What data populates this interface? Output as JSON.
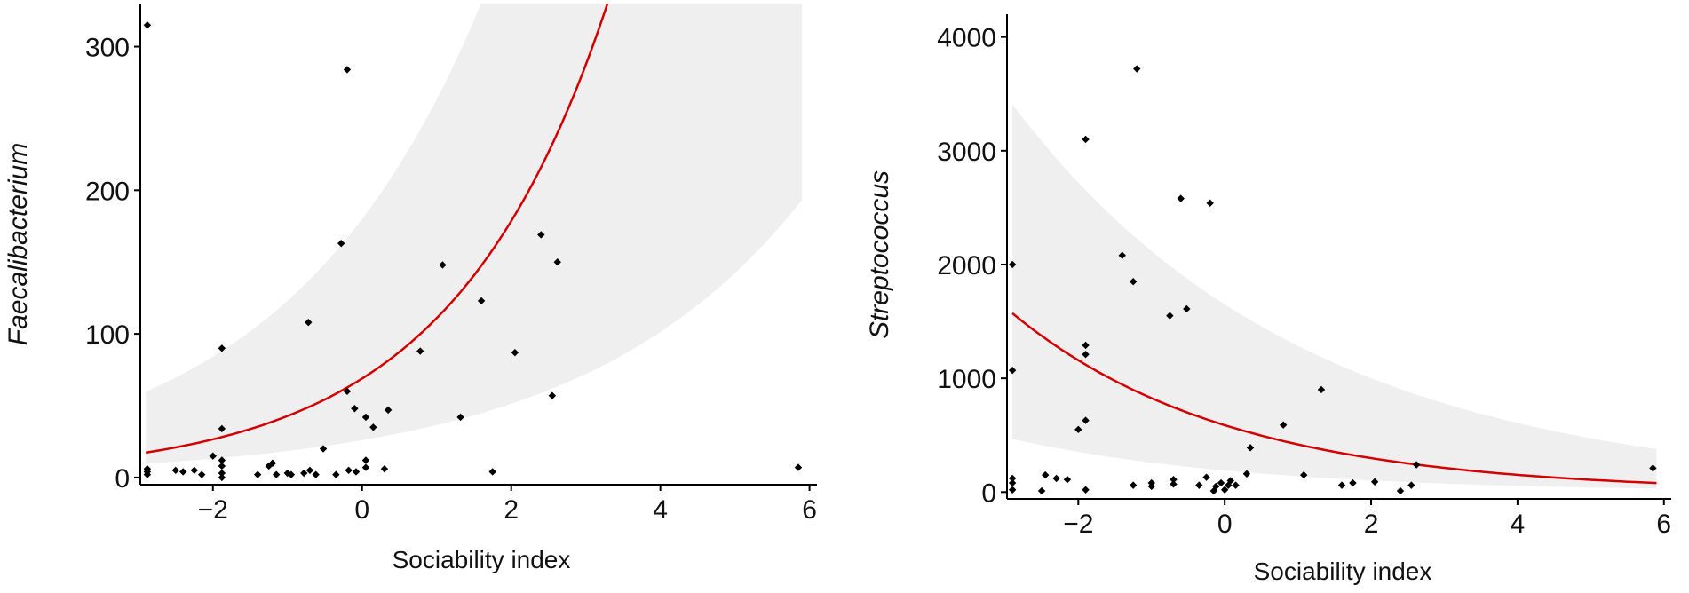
{
  "chart_data": [
    {
      "type": "scatter",
      "panel": "left",
      "xlabel": "Sociability index",
      "ylabel": "Faecalibacterium",
      "xlim": [
        -2.95,
        6.1
      ],
      "ylim": [
        -5,
        330
      ],
      "xticks": [
        -2,
        0,
        2,
        4,
        6
      ],
      "yticks": [
        0,
        100,
        200,
        300
      ],
      "grid": false,
      "fit": {
        "type": "exponential",
        "a": 68.9,
        "b": 0.476,
        "curve_color": "#d40000",
        "band_color": "#efefef",
        "band_lower": {
          "a": 26.0,
          "b": 0.34
        },
        "band_upper": {
          "a": 180.0,
          "b": 0.38
        }
      },
      "points": [
        [
          -2.88,
          315
        ],
        [
          -2.88,
          2
        ],
        [
          -2.88,
          4
        ],
        [
          -2.88,
          6
        ],
        [
          -2.5,
          5
        ],
        [
          -2.4,
          4
        ],
        [
          -2.25,
          5
        ],
        [
          -2.15,
          2
        ],
        [
          -2.0,
          15
        ],
        [
          -1.88,
          90
        ],
        [
          -1.88,
          34
        ],
        [
          -1.88,
          12
        ],
        [
          -1.88,
          8
        ],
        [
          -1.88,
          3
        ],
        [
          -1.88,
          0
        ],
        [
          -1.4,
          2
        ],
        [
          -1.25,
          8
        ],
        [
          -1.2,
          10
        ],
        [
          -1.15,
          2
        ],
        [
          -1.0,
          3
        ],
        [
          -0.95,
          2
        ],
        [
          -0.78,
          3
        ],
        [
          -0.72,
          108
        ],
        [
          -0.7,
          5
        ],
        [
          -0.62,
          2
        ],
        [
          -0.52,
          20
        ],
        [
          -0.35,
          2
        ],
        [
          -0.28,
          163
        ],
        [
          -0.2,
          284
        ],
        [
          -0.2,
          60
        ],
        [
          -0.18,
          5
        ],
        [
          -0.1,
          48
        ],
        [
          -0.08,
          4
        ],
        [
          0.05,
          42
        ],
        [
          0.05,
          12
        ],
        [
          0.05,
          7
        ],
        [
          0.15,
          35
        ],
        [
          0.3,
          6
        ],
        [
          0.35,
          47
        ],
        [
          0.78,
          88
        ],
        [
          1.08,
          148
        ],
        [
          1.32,
          42
        ],
        [
          1.6,
          123
        ],
        [
          1.75,
          4
        ],
        [
          2.05,
          87
        ],
        [
          2.4,
          169
        ],
        [
          2.55,
          57
        ],
        [
          2.62,
          150
        ],
        [
          5.85,
          7
        ]
      ]
    },
    {
      "type": "scatter",
      "panel": "right",
      "xlabel": "Sociability index",
      "ylabel": "Streptococcus",
      "xlim": [
        -2.95,
        6.1
      ],
      "ylim": [
        -60,
        4200
      ],
      "xticks": [
        -2,
        0,
        2,
        4,
        6
      ],
      "yticks": [
        0,
        1000,
        2000,
        3000,
        4000
      ],
      "grid": false,
      "fit": {
        "type": "exponential",
        "a": 588,
        "b": -0.339,
        "curve_color": "#d40000",
        "band_color": "#efefef",
        "band_lower": {
          "a": 190,
          "b": -0.31
        },
        "band_upper": {
          "a": 1650,
          "b": -0.25
        }
      },
      "points": [
        [
          -2.9,
          2000
        ],
        [
          -2.9,
          1070
        ],
        [
          -2.9,
          120
        ],
        [
          -2.9,
          80
        ],
        [
          -2.9,
          20
        ],
        [
          -2.5,
          10
        ],
        [
          -2.45,
          150
        ],
        [
          -2.3,
          120
        ],
        [
          -2.15,
          110
        ],
        [
          -2.0,
          550
        ],
        [
          -1.9,
          3100
        ],
        [
          -1.9,
          1290
        ],
        [
          -1.9,
          1210
        ],
        [
          -1.9,
          630
        ],
        [
          -1.9,
          20
        ],
        [
          -1.4,
          2080
        ],
        [
          -1.25,
          1850
        ],
        [
          -1.2,
          3720
        ],
        [
          -1.25,
          60
        ],
        [
          -1.0,
          50
        ],
        [
          -1.0,
          80
        ],
        [
          -0.75,
          1550
        ],
        [
          -0.7,
          110
        ],
        [
          -0.7,
          70
        ],
        [
          -0.6,
          2580
        ],
        [
          -0.52,
          1610
        ],
        [
          -0.35,
          60
        ],
        [
          -0.25,
          130
        ],
        [
          -0.2,
          2540
        ],
        [
          -0.15,
          10
        ],
        [
          -0.12,
          50
        ],
        [
          -0.05,
          80
        ],
        [
          0.0,
          20
        ],
        [
          0.05,
          60
        ],
        [
          0.08,
          100
        ],
        [
          0.15,
          60
        ],
        [
          0.3,
          160
        ],
        [
          0.35,
          390
        ],
        [
          0.8,
          590
        ],
        [
          1.08,
          150
        ],
        [
          1.32,
          900
        ],
        [
          1.6,
          60
        ],
        [
          1.75,
          80
        ],
        [
          2.05,
          90
        ],
        [
          2.4,
          10
        ],
        [
          2.55,
          60
        ],
        [
          2.62,
          240
        ],
        [
          5.85,
          210
        ]
      ]
    }
  ]
}
